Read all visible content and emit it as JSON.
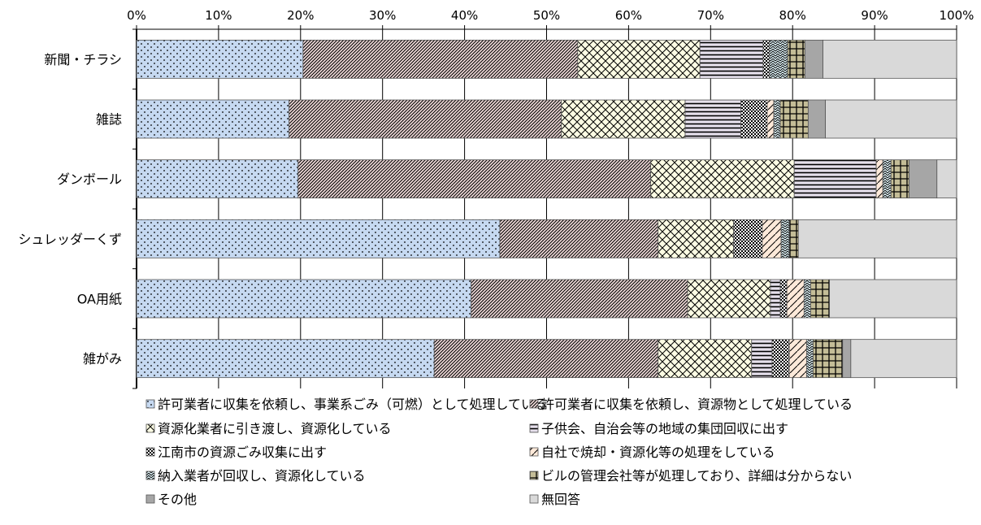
{
  "chart_data": {
    "type": "bar",
    "orientation": "horizontal",
    "stacked": true,
    "percent_stacked": true,
    "title": "",
    "xlabel": "",
    "ylabel": "",
    "xlim": [
      0,
      100
    ],
    "x_tick_labels": [
      "0%",
      "10%",
      "20%",
      "30%",
      "40%",
      "50%",
      "60%",
      "70%",
      "80%",
      "90%",
      "100%"
    ],
    "x_axis_position": "top",
    "grid": true,
    "legend_position": "bottom",
    "categories": [
      "新聞・チラシ",
      "雑誌",
      "ダンボール",
      "シュレッダーくず",
      "OA用紙",
      "雑がみ"
    ],
    "series": [
      {
        "name": "許可業者に収集を依頼し、事業系ごみ（可燃）として処理している",
        "color": "#c6d9f1",
        "pattern": "dots",
        "values": [
          20.3,
          18.6,
          19.7,
          44.3,
          40.8,
          36.3
        ]
      },
      {
        "name": "許可業者に収集を依頼し、資源物として処理している",
        "color": "#f2dcdb",
        "pattern": "dense-diagonal",
        "values": [
          33.5,
          33.2,
          43.0,
          19.3,
          26.4,
          27.3
        ]
      },
      {
        "name": "資源化業者に引き渡し、資源化している",
        "color": "#fdfde4",
        "pattern": "crosshatch",
        "values": [
          14.9,
          15.1,
          17.5,
          9.2,
          10.1,
          11.4
        ]
      },
      {
        "name": "子供会、自治会等の地域の集団回収に出す",
        "color": "#e6e0ec",
        "pattern": "horizontal-lines",
        "values": [
          7.7,
          6.8,
          10.0,
          0.0,
          1.2,
          2.5
        ]
      },
      {
        "name": "江南市の資源ごみ収集に出す",
        "color": "#ffffff",
        "pattern": "checker",
        "values": [
          0.8,
          3.2,
          0.0,
          3.5,
          0.8,
          2.1
        ]
      },
      {
        "name": "自社で焼却・資源化等の処理をしている",
        "color": "#fde9d9",
        "pattern": "wide-diagonal",
        "values": [
          0.0,
          0.8,
          0.8,
          2.3,
          2.1,
          2.1
        ]
      },
      {
        "name": "納入業者が回収し、資源化している",
        "color": "#dbeef3",
        "pattern": "zigzag",
        "values": [
          2.2,
          0.8,
          1.0,
          1.0,
          0.8,
          0.8
        ]
      },
      {
        "name": "ビルの管理会社等が処理しており、詳細は分からない",
        "color": "#c4bd97",
        "pattern": "grid",
        "values": [
          2.1,
          3.4,
          2.2,
          1.1,
          2.3,
          3.6
        ]
      },
      {
        "name": "その他",
        "color": "#a6a6a6",
        "pattern": "solid",
        "values": [
          2.2,
          2.1,
          3.4,
          0.0,
          0.0,
          1.0
        ]
      },
      {
        "name": "無回答",
        "color": "#d9d9d9",
        "pattern": "solid",
        "values": [
          16.3,
          16.0,
          2.4,
          19.3,
          15.5,
          12.9
        ]
      }
    ]
  }
}
